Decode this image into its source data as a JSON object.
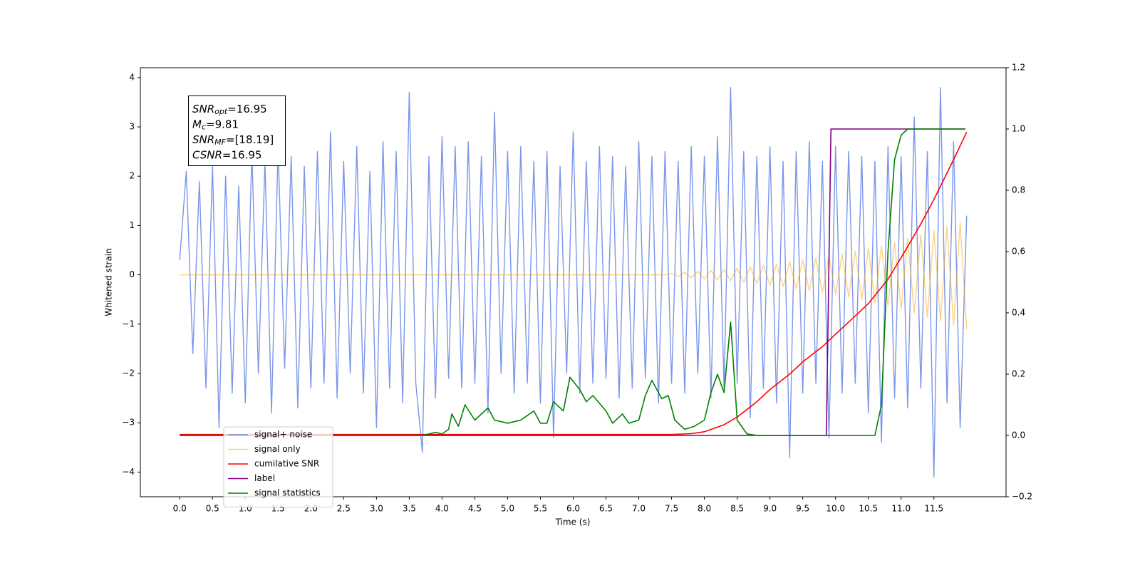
{
  "chart_data": {
    "type": "line",
    "xlabel": "Time (s)",
    "ylabel": "Whitened strain",
    "xlim": [
      -0.6,
      12.6
    ],
    "ylim": [
      -4.5,
      4.2
    ],
    "y2lim": [
      -0.2,
      1.2
    ],
    "xticks": [
      {
        "value": 0,
        "label": "0.0"
      },
      0.5,
      {
        "value": 1,
        "label": "1.0"
      },
      1.5,
      {
        "value": 2,
        "label": "2.0"
      },
      2.5,
      {
        "value": 3,
        "label": "3.0"
      },
      3.5,
      {
        "value": 4,
        "label": "4.0"
      },
      4.5,
      {
        "value": 5,
        "label": "5.0"
      },
      5.5,
      {
        "value": 6,
        "label": "6.0"
      },
      6.5,
      {
        "value": 7,
        "label": "7.0"
      },
      7.5,
      {
        "value": 8,
        "label": "8.0"
      },
      8.5,
      {
        "value": 9,
        "label": "9.0"
      },
      9.5,
      {
        "value": 10,
        "label": "10.0"
      },
      10.5,
      {
        "value": 11,
        "label": "11.0"
      },
      11.5
    ],
    "yticks": [
      {
        "value": -4,
        "label": "−4"
      },
      {
        "value": -3,
        "label": "−3"
      },
      {
        "value": -2,
        "label": "−2"
      },
      {
        "value": -1,
        "label": "−1"
      },
      0,
      1,
      2,
      3,
      4
    ],
    "y2ticks": [
      {
        "value": -0.2,
        "label": "−0.2"
      },
      {
        "value": 0,
        "label": "0.0"
      },
      0.2,
      0.4,
      0.6,
      0.8,
      {
        "value": 1,
        "label": "1.0"
      },
      1.2
    ],
    "annotations": [
      {
        "base": "SNR",
        "sub": "opt",
        "rest": "=16.95"
      },
      {
        "base": "M",
        "sub": "c",
        "rest": "=9.81"
      },
      {
        "base": "SNR",
        "sub": "MF",
        "rest": "=[18.19]"
      },
      {
        "base": "CSNR",
        "rest": "=16.95"
      }
    ],
    "legend": "lower left",
    "series": [
      {
        "name": "signal+ noise",
        "color": "#4169e1",
        "x": [
          0.0,
          0.1,
          0.2,
          0.3,
          0.4,
          0.5,
          0.6,
          0.7,
          0.8,
          0.9,
          1.0,
          1.1,
          1.2,
          1.3,
          1.4,
          1.5,
          1.6,
          1.7,
          1.8,
          1.9,
          2.0,
          2.1,
          2.2,
          2.3,
          2.4,
          2.5,
          2.6,
          2.7,
          2.8,
          2.9,
          3.0,
          3.1,
          3.2,
          3.3,
          3.4,
          3.5,
          3.6,
          3.7,
          3.8,
          3.9,
          4.0,
          4.1,
          4.2,
          4.3,
          4.4,
          4.5,
          4.6,
          4.7,
          4.8,
          4.9,
          5.0,
          5.1,
          5.2,
          5.3,
          5.4,
          5.5,
          5.6,
          5.7,
          5.8,
          5.9,
          6.0,
          6.1,
          6.2,
          6.3,
          6.4,
          6.5,
          6.6,
          6.7,
          6.8,
          6.9,
          7.0,
          7.1,
          7.2,
          7.3,
          7.4,
          7.5,
          7.6,
          7.7,
          7.8,
          7.9,
          8.0,
          8.1,
          8.2,
          8.3,
          8.4,
          8.5,
          8.6,
          8.7,
          8.8,
          8.9,
          9.0,
          9.1,
          9.2,
          9.3,
          9.4,
          9.5,
          9.6,
          9.7,
          9.8,
          9.9,
          10.0,
          10.1,
          10.2,
          10.3,
          10.4,
          10.5,
          10.6,
          10.7,
          10.8,
          10.9,
          11.0,
          11.1,
          11.2,
          11.3,
          11.4,
          11.5,
          11.6,
          11.7,
          11.8,
          11.9,
          12.0
        ],
        "values": [
          0.3,
          2.1,
          -1.6,
          1.9,
          -2.3,
          2.2,
          -3.1,
          2.0,
          -2.4,
          1.8,
          -2.6,
          2.5,
          -2.0,
          2.3,
          -2.8,
          2.6,
          -1.9,
          2.4,
          -2.7,
          2.2,
          -2.3,
          2.5,
          -2.2,
          2.9,
          -2.5,
          2.3,
          -2.0,
          2.6,
          -2.4,
          2.1,
          -3.1,
          2.7,
          -2.3,
          2.5,
          -2.6,
          3.7,
          -2.2,
          -3.6,
          2.4,
          -2.5,
          2.8,
          -2.1,
          2.6,
          -2.3,
          2.7,
          -2.2,
          2.4,
          -2.8,
          3.3,
          -2.0,
          2.5,
          -2.4,
          2.6,
          -2.2,
          2.3,
          -2.6,
          2.5,
          -3.3,
          2.2,
          -2.0,
          2.9,
          -2.4,
          2.3,
          -2.2,
          2.6,
          -2.1,
          2.4,
          -2.5,
          2.2,
          -2.3,
          2.7,
          -2.1,
          2.4,
          -2.6,
          2.5,
          -2.2,
          2.3,
          -2.4,
          2.6,
          -2.0,
          2.4,
          -2.5,
          2.8,
          -2.3,
          3.8,
          -2.2,
          2.5,
          -2.9,
          2.4,
          -2.3,
          2.6,
          -2.6,
          2.3,
          -3.7,
          2.5,
          -2.4,
          2.7,
          -2.2,
          2.3,
          -3.3,
          2.6,
          -2.4,
          2.5,
          -2.2,
          2.4,
          -2.8,
          2.3,
          -3.4,
          2.6,
          -2.5,
          2.4,
          -2.7,
          3.2,
          -2.3,
          2.5,
          -4.1,
          3.8,
          -2.6,
          2.7,
          -3.1,
          1.2
        ]
      },
      {
        "name": "signal only",
        "color": "#ffa500",
        "x": [
          0.0,
          7.4,
          7.5,
          7.6,
          7.7,
          7.8,
          7.9,
          8.0,
          8.1,
          8.2,
          8.3,
          8.4,
          8.5,
          8.6,
          8.7,
          8.8,
          8.9,
          9.0,
          9.1,
          9.2,
          9.3,
          9.4,
          9.5,
          9.6,
          9.7,
          9.8,
          9.9,
          10.0,
          10.1,
          10.2,
          10.3,
          10.4,
          10.5,
          10.6,
          10.7,
          10.8,
          10.9,
          11.0,
          11.1,
          11.2,
          11.3,
          11.4,
          11.5,
          11.6,
          11.7,
          11.8,
          11.9,
          12.0
        ],
        "values": [
          0,
          0,
          0.03,
          -0.04,
          0.05,
          -0.06,
          0.07,
          -0.08,
          0.09,
          -0.1,
          0.11,
          -0.12,
          0.13,
          -0.15,
          0.16,
          -0.18,
          0.19,
          -0.21,
          0.22,
          -0.24,
          0.26,
          -0.28,
          0.3,
          -0.32,
          0.34,
          -0.36,
          0.38,
          -0.4,
          0.42,
          -0.45,
          0.48,
          -0.51,
          0.54,
          -0.57,
          0.6,
          -0.63,
          0.66,
          -0.7,
          0.74,
          -0.78,
          0.82,
          -0.86,
          0.9,
          -0.94,
          0.98,
          -1.02,
          1.06,
          -1.1
        ]
      },
      {
        "name": "cumilative SNR",
        "color": "#ff0000",
        "axis": "y2",
        "x": [
          0.0,
          7.5,
          7.8,
          8.0,
          8.3,
          8.5,
          8.8,
          9.0,
          9.3,
          9.5,
          9.8,
          10.0,
          10.3,
          10.5,
          10.8,
          11.0,
          11.3,
          11.5,
          11.8,
          12.0
        ],
        "values": [
          0.003,
          0.003,
          0.006,
          0.012,
          0.035,
          0.06,
          0.11,
          0.15,
          0.2,
          0.24,
          0.29,
          0.33,
          0.39,
          0.43,
          0.51,
          0.58,
          0.69,
          0.77,
          0.9,
          0.99
        ]
      },
      {
        "name": "label",
        "color": "#800080",
        "axis": "y2",
        "x": [
          0.0,
          9.86,
          9.93,
          11.98
        ],
        "values": [
          0,
          0,
          1,
          1
        ]
      },
      {
        "name": "signal statistics",
        "color": "#008000",
        "axis": "y2",
        "x": [
          0.0,
          3.7,
          3.9,
          4.0,
          4.1,
          4.15,
          4.25,
          4.35,
          4.5,
          4.7,
          4.8,
          5.0,
          5.2,
          5.4,
          5.5,
          5.6,
          5.7,
          5.85,
          5.95,
          6.1,
          6.2,
          6.3,
          6.5,
          6.6,
          6.75,
          6.85,
          7.0,
          7.1,
          7.2,
          7.35,
          7.45,
          7.55,
          7.7,
          7.85,
          8.0,
          8.1,
          8.2,
          8.3,
          8.4,
          8.5,
          8.65,
          8.8,
          10.6,
          10.7,
          10.8,
          10.9,
          11.0,
          11.1,
          11.98
        ],
        "values": [
          0,
          0,
          0.01,
          0.005,
          0.02,
          0.07,
          0.03,
          0.1,
          0.05,
          0.09,
          0.05,
          0.04,
          0.05,
          0.08,
          0.04,
          0.04,
          0.11,
          0.08,
          0.19,
          0.15,
          0.11,
          0.13,
          0.08,
          0.04,
          0.07,
          0.04,
          0.05,
          0.13,
          0.18,
          0.12,
          0.13,
          0.05,
          0.02,
          0.03,
          0.05,
          0.14,
          0.2,
          0.14,
          0.37,
          0.05,
          0.005,
          0,
          0,
          0.1,
          0.6,
          0.9,
          0.98,
          1.0,
          1.0
        ]
      }
    ]
  }
}
